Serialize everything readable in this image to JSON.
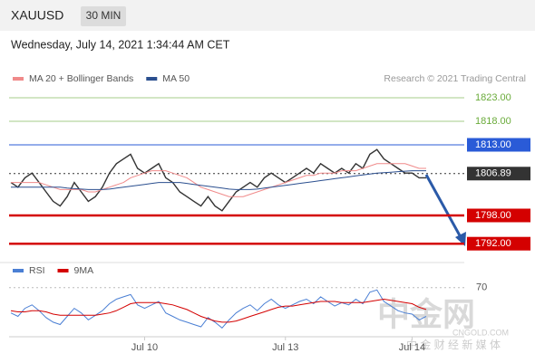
{
  "header": {
    "symbol": "XAUUSD",
    "timeframe": "30 MIN",
    "datetime": "Wednesday, July 14, 2021 1:34:44 AM CET"
  },
  "watermark": {
    "name": "中金网",
    "site": "CNGOLD.COM",
    "slogan": "中 金 财 经 新 媒 体"
  },
  "chart_data": [
    {
      "type": "line",
      "source": "Research © 2021 Trading Central",
      "ylim": [
        1790.5,
        1825.5
      ],
      "levels": [
        {
          "value": 1823,
          "label": "1823.00",
          "color": "#6aab3a",
          "boxed": false
        },
        {
          "value": 1818,
          "label": "1818.00",
          "color": "#6aab3a",
          "boxed": false
        },
        {
          "value": 1813,
          "label": "1813.00",
          "color": "#2a5bd7",
          "boxed": true
        },
        {
          "value": 1806.89,
          "label": "1806.89",
          "color": "#333333",
          "boxed": true
        },
        {
          "value": 1798,
          "label": "1798.00",
          "color": "#d40000",
          "boxed": true
        },
        {
          "value": 1792,
          "label": "1792.00",
          "color": "#d40000",
          "boxed": true
        }
      ],
      "series": [
        {
          "color": "#333333",
          "values": [
            1805,
            1804,
            1806,
            1807,
            1805,
            1803,
            1801,
            1800,
            1802,
            1805,
            1803,
            1801,
            1802,
            1804,
            1807,
            1809,
            1810,
            1811,
            1808,
            1807,
            1808,
            1809,
            1806,
            1805,
            1803,
            1802,
            1801,
            1800,
            1802,
            1800,
            1799,
            1801,
            1803,
            1804,
            1805,
            1804,
            1806,
            1807,
            1806,
            1805,
            1806,
            1807,
            1808,
            1807,
            1809,
            1808,
            1807,
            1808,
            1807,
            1809,
            1808,
            1811,
            1812,
            1810,
            1809,
            1808,
            1807,
            1807,
            1806,
            1806
          ]
        },
        {
          "name": "MA 20 + Bollinger Bands",
          "color": "#f08a8a",
          "values": [
            1805,
            1805,
            1805,
            1805,
            1805,
            1804.5,
            1804,
            1803.5,
            1803.5,
            1803.5,
            1803.5,
            1803,
            1803,
            1803.5,
            1804,
            1804.5,
            1805,
            1806,
            1806.5,
            1807,
            1807.5,
            1807.5,
            1807.5,
            1807,
            1806.5,
            1806,
            1805,
            1804,
            1803.5,
            1803,
            1802.5,
            1802,
            1802,
            1802,
            1802.5,
            1803,
            1803.5,
            1804,
            1804.5,
            1805,
            1805.5,
            1806,
            1806.5,
            1806.5,
            1807,
            1807,
            1807,
            1807.5,
            1807.5,
            1807.5,
            1808,
            1808.5,
            1809,
            1809,
            1809,
            1809,
            1809,
            1808.5,
            1808,
            1808
          ]
        },
        {
          "name": "MA 50",
          "color": "#2b4f8f",
          "values": [
            1804,
            1804,
            1804,
            1804,
            1804,
            1804,
            1804,
            1804,
            1803.8,
            1803.7,
            1803.6,
            1803.5,
            1803.5,
            1803.5,
            1803.6,
            1803.8,
            1804,
            1804.2,
            1804.4,
            1804.6,
            1804.8,
            1805,
            1805,
            1805,
            1805,
            1804.8,
            1804.6,
            1804.4,
            1804.2,
            1804,
            1803.8,
            1803.6,
            1803.5,
            1803.5,
            1803.5,
            1803.6,
            1803.8,
            1804,
            1804.2,
            1804.4,
            1804.6,
            1804.8,
            1805,
            1805.2,
            1805.4,
            1805.6,
            1805.8,
            1806,
            1806.2,
            1806.4,
            1806.6,
            1806.8,
            1807,
            1807.1,
            1807.2,
            1807.3,
            1807.4,
            1807.5,
            1807.5,
            1807.5
          ]
        }
      ]
    },
    {
      "type": "line",
      "categories": [
        null,
        null,
        null,
        null,
        null,
        null,
        null,
        null,
        null,
        null,
        null,
        null,
        null,
        null,
        null,
        null,
        null,
        null,
        null,
        "Jul 10",
        null,
        null,
        null,
        null,
        null,
        null,
        null,
        null,
        null,
        null,
        null,
        null,
        null,
        null,
        null,
        null,
        null,
        null,
        null,
        "Jul 13",
        null,
        null,
        null,
        null,
        null,
        null,
        null,
        null,
        null,
        null,
        null,
        null,
        null,
        null,
        null,
        null,
        null,
        "Jul 14",
        null,
        null
      ],
      "ylim": [
        25,
        80
      ],
      "yticks": [
        70
      ],
      "series": [
        {
          "name": "RSI",
          "color": "#4a7fd4",
          "values": [
            48,
            45,
            52,
            55,
            50,
            44,
            40,
            38,
            45,
            52,
            48,
            42,
            46,
            50,
            56,
            60,
            62,
            64,
            55,
            52,
            55,
            58,
            48,
            45,
            42,
            40,
            38,
            36,
            44,
            40,
            35,
            42,
            48,
            52,
            55,
            50,
            56,
            60,
            55,
            52,
            55,
            58,
            60,
            56,
            62,
            58,
            54,
            57,
            55,
            60,
            56,
            66,
            68,
            58,
            54,
            50,
            48,
            47,
            42,
            45
          ]
        },
        {
          "name": "9MA",
          "color": "#d40000",
          "values": [
            50,
            49,
            49,
            50,
            50,
            49,
            47,
            46,
            46,
            46,
            46,
            46,
            46,
            47,
            48,
            50,
            53,
            56,
            57,
            57,
            57,
            57,
            56,
            55,
            53,
            51,
            48,
            45,
            43,
            41,
            40,
            40,
            41,
            43,
            45,
            47,
            49,
            51,
            53,
            54,
            54,
            55,
            56,
            57,
            58,
            58,
            58,
            57,
            57,
            57,
            57,
            58,
            59,
            60,
            59,
            58,
            57,
            56,
            53,
            51
          ]
        }
      ]
    }
  ]
}
